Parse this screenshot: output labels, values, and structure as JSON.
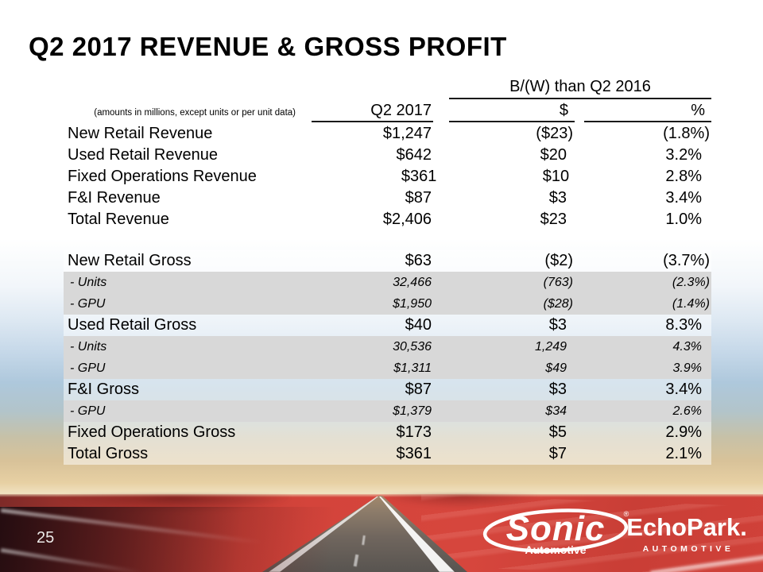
{
  "slide": {
    "title": "Q2 2017 REVENUE & GROSS PROFIT",
    "page_number": "25"
  },
  "table": {
    "group_header": "B/(W) than Q2 2016",
    "note": "(amounts in millions, except units or per unit data)",
    "columns": [
      "Q2 2017",
      "$",
      "%"
    ],
    "rows": [
      {
        "type": "revenue",
        "label": "New Retail Revenue",
        "q2": "$1,247",
        "vs_dollar": "($23)",
        "vs_percent": "(1.8%)"
      },
      {
        "type": "revenue",
        "label": "Used Retail Revenue",
        "q2": "$642",
        "vs_dollar": "$20",
        "vs_percent": "3.2%"
      },
      {
        "type": "revenue",
        "label": "Fixed Operations Revenue",
        "q2": "$361",
        "vs_dollar": "$10",
        "vs_percent": "2.8%"
      },
      {
        "type": "revenue",
        "label": "F&I Revenue",
        "q2": "$87",
        "vs_dollar": "$3",
        "vs_percent": "3.4%"
      },
      {
        "type": "revenue",
        "label": "Total Revenue",
        "q2": "$2,406",
        "vs_dollar": "$23",
        "vs_percent": "1.0%"
      },
      {
        "type": "spacer"
      },
      {
        "type": "main",
        "label": "New Retail Gross",
        "q2": "$63",
        "vs_dollar": "($2)",
        "vs_percent": "(3.7%)"
      },
      {
        "type": "sub",
        "label": "- Units",
        "q2": "32,466",
        "vs_dollar": "(763)",
        "vs_percent": "(2.3%)"
      },
      {
        "type": "sub",
        "label": "- GPU",
        "q2": "$1,950",
        "vs_dollar": "($28)",
        "vs_percent": "(1.4%)"
      },
      {
        "type": "main",
        "label": "Used Retail Gross",
        "q2": "$40",
        "vs_dollar": "$3",
        "vs_percent": "8.3%"
      },
      {
        "type": "sub",
        "label": "- Units",
        "q2": "30,536",
        "vs_dollar": "1,249",
        "vs_percent": "4.3%"
      },
      {
        "type": "sub",
        "label": "- GPU",
        "q2": "$1,311",
        "vs_dollar": "$49",
        "vs_percent": "3.9%"
      },
      {
        "type": "main",
        "label": "F&I Gross",
        "q2": "$87",
        "vs_dollar": "$3",
        "vs_percent": "3.4%"
      },
      {
        "type": "sub",
        "label": "- GPU",
        "q2": "$1,379",
        "vs_dollar": "$34",
        "vs_percent": "2.6%"
      },
      {
        "type": "main",
        "label": "Fixed Operations Gross",
        "q2": "$173",
        "vs_dollar": "$5",
        "vs_percent": "2.9%"
      },
      {
        "type": "main",
        "label": "Total Gross",
        "q2": "$361",
        "vs_dollar": "$7",
        "vs_percent": "2.1%"
      }
    ]
  },
  "footer": {
    "sonic": {
      "name": "Sonic",
      "sub": "Automotive",
      "reg": "®"
    },
    "echopark": {
      "name": "EchoPark.",
      "sub": "AUTOMOTIVE"
    }
  },
  "colors": {
    "band_gray": "#d8d8d8",
    "brand_red": "#d4443b",
    "text_black": "#000000",
    "logo_white": "#ffffff"
  }
}
